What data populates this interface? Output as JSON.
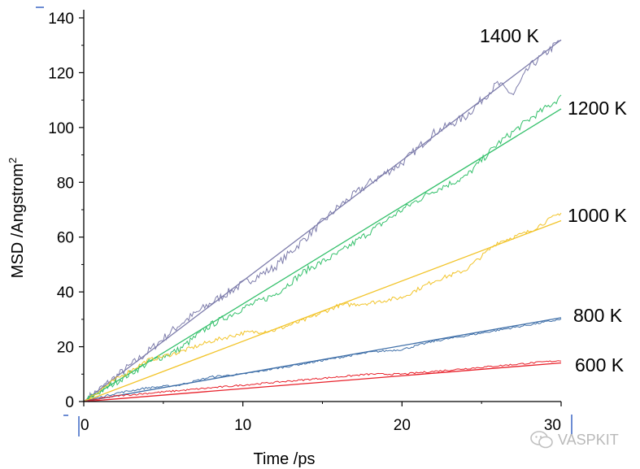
{
  "chart_data": {
    "type": "line",
    "title": "",
    "xlabel": "Time /ps",
    "ylabel": "MSD /Angstrom",
    "ylabel_sup": "2",
    "xlim": [
      0,
      30
    ],
    "ylim": [
      0,
      140
    ],
    "xticks": [
      0,
      10,
      20,
      30
    ],
    "yticks": [
      0,
      20,
      40,
      60,
      80,
      100,
      120,
      140
    ],
    "grid": false,
    "series": [
      {
        "name": "1400 K",
        "color": "#7d7cab",
        "fit_slope": 4.4,
        "x": [
          0,
          2,
          4,
          6,
          8,
          10,
          12,
          14,
          16,
          18,
          20,
          22,
          24,
          26,
          27,
          28,
          30
        ],
        "values": [
          0,
          9,
          18,
          28,
          36,
          43,
          49,
          60,
          71,
          80,
          87,
          98,
          104,
          116,
          112,
          122,
          132
        ]
      },
      {
        "name": "1200 K",
        "color": "#34c06b",
        "fit_slope": 3.56,
        "x": [
          0,
          2,
          4,
          6,
          8,
          10,
          12,
          14,
          16,
          18,
          20,
          22,
          24,
          26,
          28,
          30
        ],
        "values": [
          0,
          7,
          14,
          19,
          28,
          34,
          39,
          48,
          54,
          62,
          70,
          77,
          82,
          94,
          103,
          111
        ]
      },
      {
        "name": "1000 K",
        "color": "#f2c42a",
        "fit_slope": 2.2,
        "x": [
          0,
          2,
          4,
          6,
          8,
          10,
          12,
          14,
          16,
          18,
          20,
          22,
          24,
          26,
          28,
          30
        ],
        "values": [
          0,
          8,
          15,
          18,
          22,
          25,
          26,
          30,
          35,
          36,
          38,
          44,
          48,
          58,
          62,
          69
        ]
      },
      {
        "name": "800 K",
        "color": "#3f6fa8",
        "fit_slope": 1.02,
        "x": [
          0,
          2,
          4,
          6,
          8,
          10,
          12,
          14,
          16,
          18,
          20,
          22,
          24,
          26,
          28,
          30
        ],
        "values": [
          0,
          3,
          5,
          6,
          9,
          10,
          12,
          14,
          16,
          18,
          19,
          22,
          24,
          26,
          28,
          30
        ]
      },
      {
        "name": "600 K",
        "color": "#e8202a",
        "fit_slope": 0.47,
        "x": [
          0,
          2,
          4,
          6,
          8,
          10,
          12,
          14,
          16,
          18,
          20,
          22,
          24,
          26,
          28,
          30
        ],
        "values": [
          0,
          2,
          3,
          4,
          5,
          6,
          7,
          8,
          9,
          10,
          10,
          11,
          12,
          13,
          14,
          15
        ]
      }
    ]
  },
  "watermark": {
    "text": "VASPKIT",
    "icon": "wechat-icon"
  }
}
